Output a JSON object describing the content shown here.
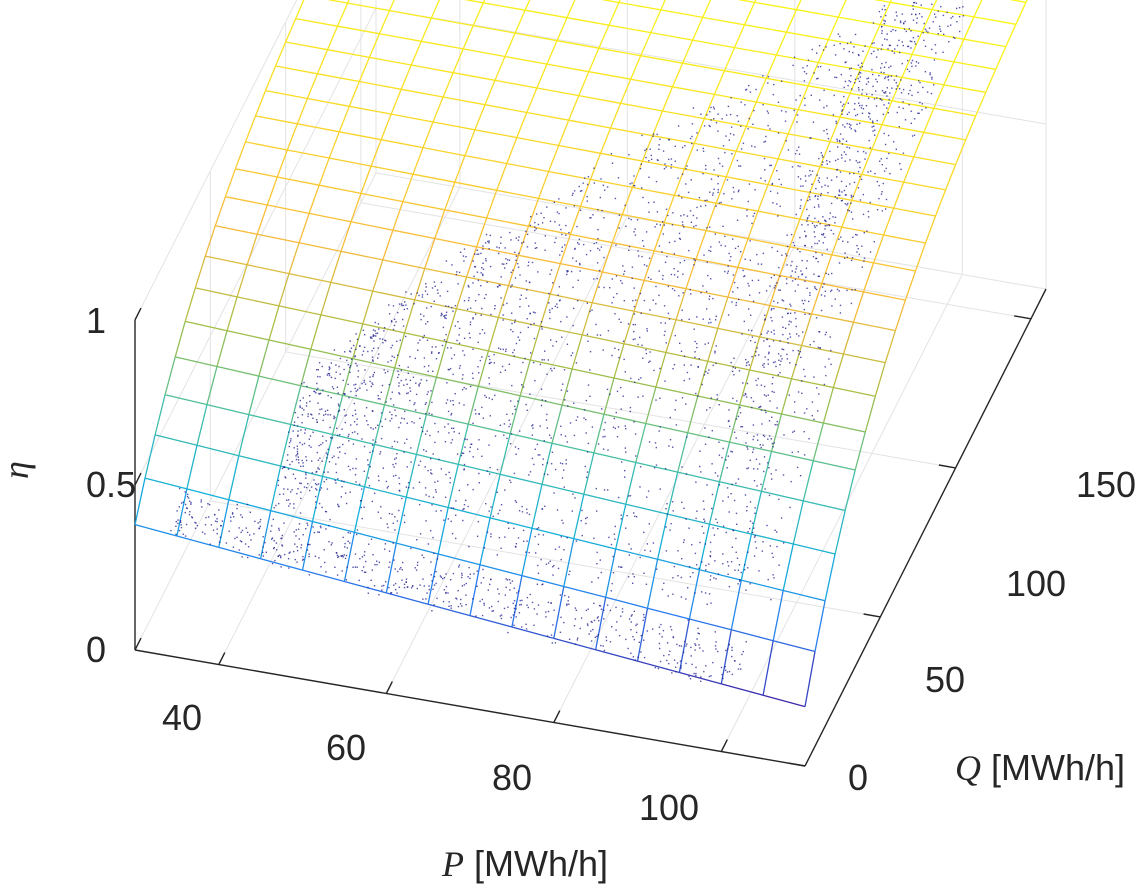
{
  "chart_data": {
    "type": "surface-scatter-3d",
    "x_axis": {
      "label_symbol": "P",
      "label_unit": " [MWh/h]",
      "ticks": [
        40,
        60,
        80,
        100
      ],
      "range": [
        30,
        110
      ]
    },
    "y_axis": {
      "label_symbol": "Q",
      "label_unit": " [MWh/h]",
      "ticks": [
        0,
        50,
        100,
        150
      ],
      "range": [
        0,
        160
      ]
    },
    "z_axis": {
      "label_symbol": "η",
      "ticks": [
        0,
        0.5,
        1
      ],
      "range": [
        0,
        1
      ]
    },
    "grid": true,
    "surface": {
      "colormap": "parula",
      "description_values": {
        "eta_at_Pmin_Qmin": 0.38,
        "eta_at_Pmax_Qmin": 0.18,
        "eta_at_Pmin_Qmax": 1.0,
        "eta_at_Pmax_Qmax": 1.0
      }
    },
    "scatter": {
      "color": "#1a1a8c",
      "marker": "dot"
    }
  },
  "tick_labels": {
    "x": [
      "40",
      "60",
      "80",
      "100"
    ],
    "y": [
      "0",
      "50",
      "100",
      "150"
    ],
    "z": [
      "0",
      "0.5",
      "1"
    ]
  }
}
